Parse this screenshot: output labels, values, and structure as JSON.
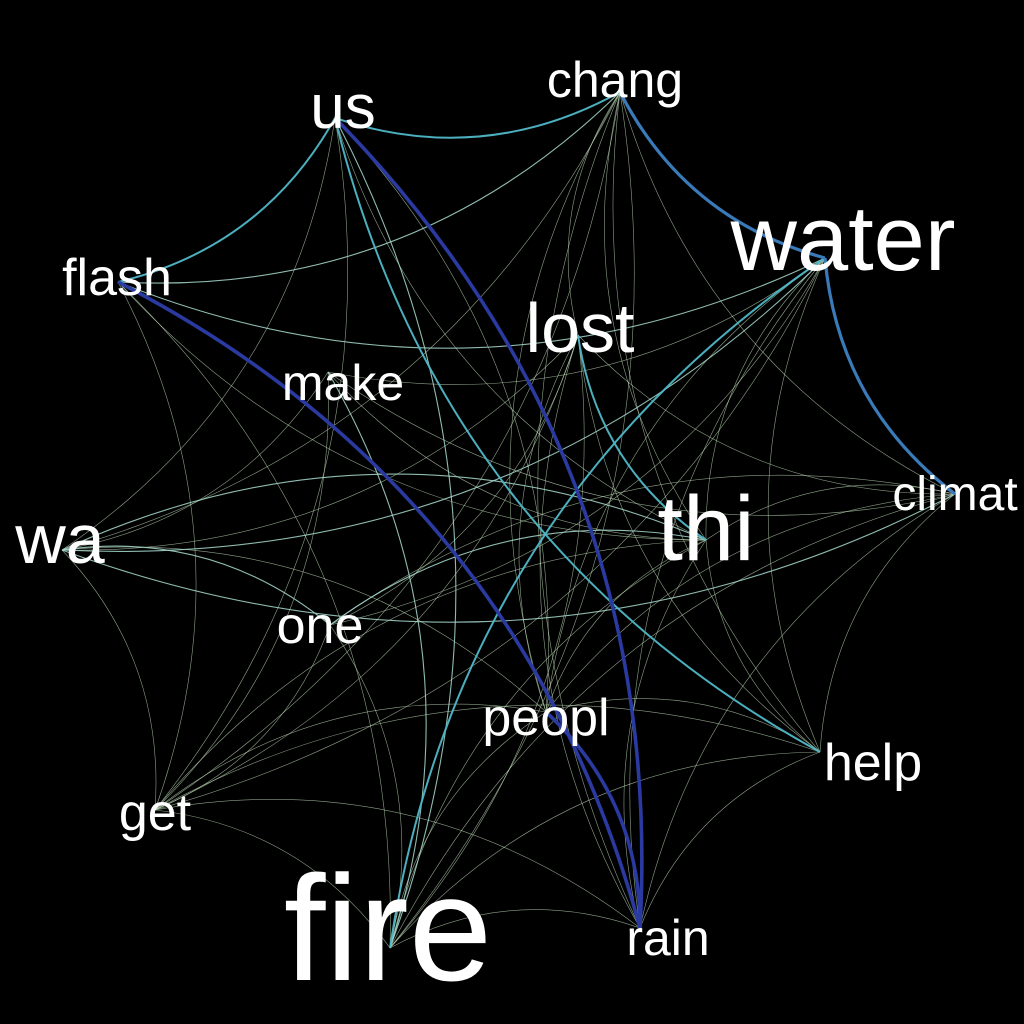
{
  "background": "#000000",
  "label_color": "#ffffff",
  "edge_colors": {
    "weak": "#c8e6c0",
    "light": "#a8dcd0",
    "medium": "#4fb8c8",
    "strong": "#3a7ab8",
    "strongest": "#2a3aa0"
  },
  "nodes": [
    {
      "id": "us",
      "label": "us",
      "weight": 3
    },
    {
      "id": "chang",
      "label": "chang",
      "weight": 2
    },
    {
      "id": "water",
      "label": "water",
      "weight": 5
    },
    {
      "id": "flash",
      "label": "flash",
      "weight": 2
    },
    {
      "id": "lost",
      "label": "lost",
      "weight": 4
    },
    {
      "id": "make",
      "label": "make",
      "weight": 2
    },
    {
      "id": "wa",
      "label": "wa",
      "weight": 4
    },
    {
      "id": "thi",
      "label": "thi",
      "weight": 5
    },
    {
      "id": "climat",
      "label": "climat",
      "weight": 2
    },
    {
      "id": "one",
      "label": "one",
      "weight": 2
    },
    {
      "id": "peopl",
      "label": "peopl",
      "weight": 2
    },
    {
      "id": "help",
      "label": "help",
      "weight": 2
    },
    {
      "id": "get",
      "label": "get",
      "weight": 2
    },
    {
      "id": "fire",
      "label": "fire",
      "weight": 9
    },
    {
      "id": "rain",
      "label": "rain",
      "weight": 2
    }
  ],
  "edges": [
    {
      "source": "us",
      "target": "rain",
      "strength": "strongest"
    },
    {
      "source": "flash",
      "target": "rain",
      "strength": "strongest"
    },
    {
      "source": "chang",
      "target": "water",
      "strength": "strong"
    },
    {
      "source": "water",
      "target": "climat",
      "strength": "strong"
    },
    {
      "source": "peopl",
      "target": "rain",
      "strength": "strongest"
    },
    {
      "source": "us",
      "target": "chang",
      "strength": "medium"
    },
    {
      "source": "us",
      "target": "flash",
      "strength": "medium"
    },
    {
      "source": "us",
      "target": "help",
      "strength": "medium"
    },
    {
      "source": "water",
      "target": "fire",
      "strength": "medium"
    },
    {
      "source": "lost",
      "target": "thi",
      "strength": "medium"
    },
    {
      "source": "us",
      "target": "fire",
      "strength": "light"
    },
    {
      "source": "chang",
      "target": "flash",
      "strength": "light"
    },
    {
      "source": "flash",
      "target": "water",
      "strength": "light"
    },
    {
      "source": "wa",
      "target": "thi",
      "strength": "light"
    },
    {
      "source": "wa",
      "target": "water",
      "strength": "light"
    },
    {
      "source": "wa",
      "target": "climat",
      "strength": "light"
    },
    {
      "source": "wa",
      "target": "one",
      "strength": "light"
    },
    {
      "source": "wa",
      "target": "peopl",
      "strength": "weak"
    },
    {
      "source": "wa",
      "target": "get",
      "strength": "weak"
    },
    {
      "source": "wa",
      "target": "lost",
      "strength": "weak"
    },
    {
      "source": "wa",
      "target": "make",
      "strength": "weak"
    },
    {
      "source": "make",
      "target": "fire",
      "strength": "light"
    },
    {
      "source": "make",
      "target": "thi",
      "strength": "weak"
    },
    {
      "source": "make",
      "target": "get",
      "strength": "weak"
    },
    {
      "source": "make",
      "target": "climat",
      "strength": "weak"
    },
    {
      "source": "one",
      "target": "thi",
      "strength": "light"
    },
    {
      "source": "one",
      "target": "water",
      "strength": "weak"
    },
    {
      "source": "one",
      "target": "get",
      "strength": "weak"
    },
    {
      "source": "one",
      "target": "fire",
      "strength": "weak"
    },
    {
      "source": "chang",
      "target": "thi",
      "strength": "weak"
    },
    {
      "source": "chang",
      "target": "help",
      "strength": "weak"
    },
    {
      "source": "chang",
      "target": "rain",
      "strength": "weak"
    },
    {
      "source": "chang",
      "target": "fire",
      "strength": "weak"
    },
    {
      "source": "chang",
      "target": "peopl",
      "strength": "weak"
    },
    {
      "source": "chang",
      "target": "climat",
      "strength": "weak"
    },
    {
      "source": "chang",
      "target": "get",
      "strength": "weak"
    },
    {
      "source": "chang",
      "target": "lost",
      "strength": "weak"
    },
    {
      "source": "chang",
      "target": "wa",
      "strength": "weak"
    },
    {
      "source": "water",
      "target": "get",
      "strength": "weak"
    },
    {
      "source": "water",
      "target": "peopl",
      "strength": "weak"
    },
    {
      "source": "water",
      "target": "help",
      "strength": "weak"
    },
    {
      "source": "water",
      "target": "rain",
      "strength": "weak"
    },
    {
      "source": "water",
      "target": "thi",
      "strength": "weak"
    },
    {
      "source": "water",
      "target": "make",
      "strength": "weak"
    },
    {
      "source": "lost",
      "target": "fire",
      "strength": "weak"
    },
    {
      "source": "lost",
      "target": "get",
      "strength": "weak"
    },
    {
      "source": "lost",
      "target": "help",
      "strength": "weak"
    },
    {
      "source": "lost",
      "target": "rain",
      "strength": "weak"
    },
    {
      "source": "lost",
      "target": "peopl",
      "strength": "weak"
    },
    {
      "source": "lost",
      "target": "one",
      "strength": "weak"
    },
    {
      "source": "lost",
      "target": "climat",
      "strength": "weak"
    },
    {
      "source": "thi",
      "target": "fire",
      "strength": "weak"
    },
    {
      "source": "thi",
      "target": "get",
      "strength": "weak"
    },
    {
      "source": "thi",
      "target": "help",
      "strength": "weak"
    },
    {
      "source": "thi",
      "target": "rain",
      "strength": "weak"
    },
    {
      "source": "thi",
      "target": "climat",
      "strength": "weak"
    },
    {
      "source": "thi",
      "target": "peopl",
      "strength": "weak"
    },
    {
      "source": "climat",
      "target": "fire",
      "strength": "weak"
    },
    {
      "source": "climat",
      "target": "rain",
      "strength": "weak"
    },
    {
      "source": "climat",
      "target": "help",
      "strength": "weak"
    },
    {
      "source": "climat",
      "target": "peopl",
      "strength": "weak"
    },
    {
      "source": "climat",
      "target": "one",
      "strength": "weak"
    },
    {
      "source": "peopl",
      "target": "get",
      "strength": "weak"
    },
    {
      "source": "peopl",
      "target": "fire",
      "strength": "weak"
    },
    {
      "source": "peopl",
      "target": "help",
      "strength": "weak"
    },
    {
      "source": "help",
      "target": "rain",
      "strength": "weak"
    },
    {
      "source": "help",
      "target": "get",
      "strength": "weak"
    },
    {
      "source": "help",
      "target": "fire",
      "strength": "weak"
    },
    {
      "source": "get",
      "target": "fire",
      "strength": "weak"
    },
    {
      "source": "get",
      "target": "rain",
      "strength": "weak"
    },
    {
      "source": "fire",
      "target": "rain",
      "strength": "weak"
    },
    {
      "source": "flash",
      "target": "get",
      "strength": "weak"
    },
    {
      "source": "flash",
      "target": "thi",
      "strength": "weak"
    },
    {
      "source": "flash",
      "target": "fire",
      "strength": "weak"
    },
    {
      "source": "us",
      "target": "thi",
      "strength": "weak"
    },
    {
      "source": "us",
      "target": "get",
      "strength": "weak"
    },
    {
      "source": "us",
      "target": "peopl",
      "strength": "weak"
    },
    {
      "source": "us",
      "target": "wa",
      "strength": "weak"
    }
  ]
}
